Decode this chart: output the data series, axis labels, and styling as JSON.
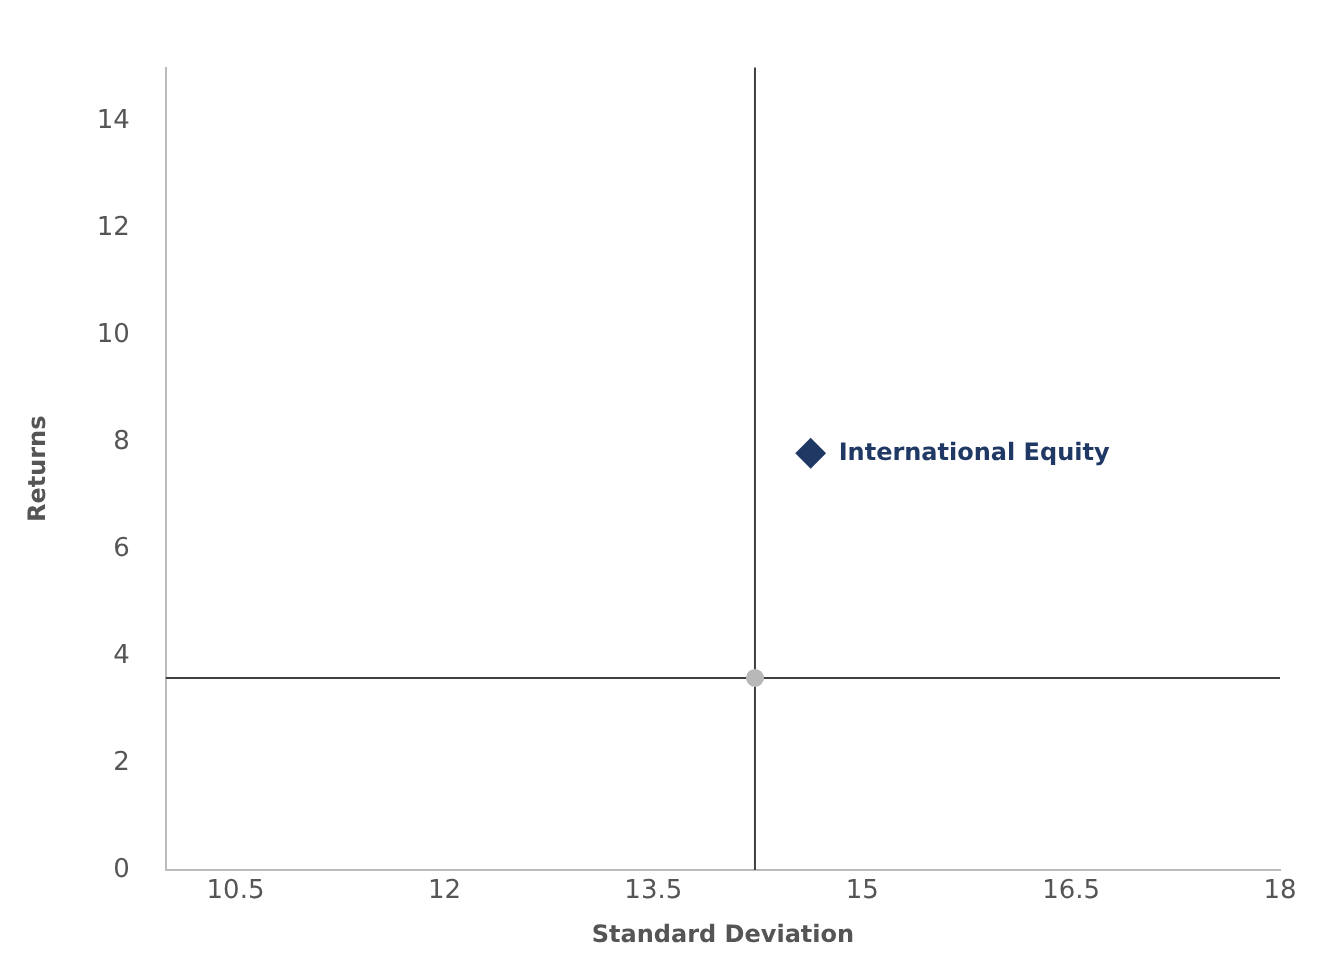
{
  "chart_data": {
    "type": "scatter",
    "xlabel": "Standard Deviation",
    "ylabel": "Returns",
    "xlim": [
      10,
      18
    ],
    "xticks": [
      10.5,
      12,
      13.5,
      15,
      16.5,
      18
    ],
    "ylim": [
      0,
      15
    ],
    "yticks": [
      0,
      2,
      4,
      6,
      8,
      10,
      12,
      14
    ],
    "grid": false,
    "legend": false,
    "series": [
      {
        "name": "International Equity",
        "color": "#1f3864",
        "x": [
          14.63
        ],
        "values": [
          7.79
        ],
        "marker": "diamond"
      },
      {
        "color": "#b8b8b8",
        "x": [
          14.23
        ],
        "values": [
          3.59
        ],
        "marker": "circle"
      }
    ],
    "ref_lines": [
      {
        "axis": "x",
        "value": 14.23,
        "color": "#404040"
      },
      {
        "axis": "y",
        "value": 3.59,
        "color": "#404040"
      }
    ]
  }
}
